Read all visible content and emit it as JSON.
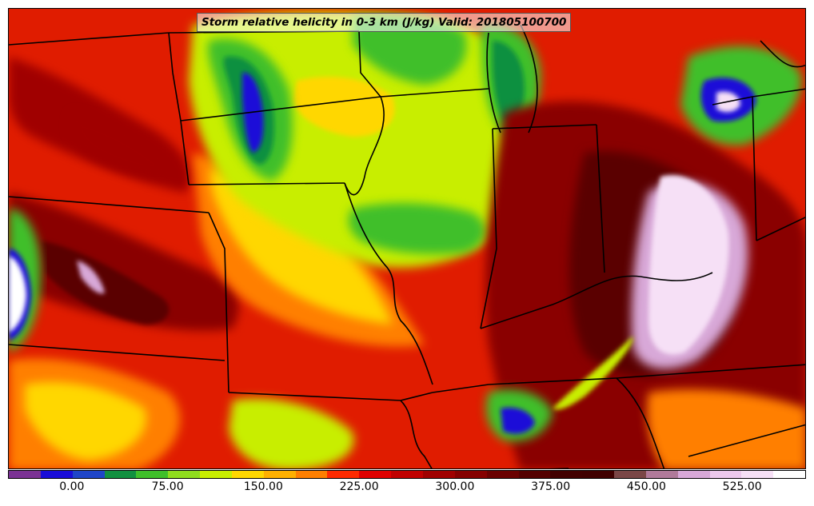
{
  "title": "Storm relative helicity in 0-3 km (J/kg) Valid: 201805100700",
  "colorbar": {
    "colors": [
      "#7b3294",
      "#1a0dd8",
      "#1f45c8",
      "#119040",
      "#3fbf2a",
      "#8fdc1e",
      "#c8ee00",
      "#ffd700",
      "#ffb000",
      "#ff7f00",
      "#ff2a00",
      "#e00000",
      "#c00000",
      "#a00000",
      "#850000",
      "#6a0000",
      "#540000",
      "#420000",
      "#400000",
      "#7a4646",
      "#b07a9a",
      "#d8a8d8",
      "#ecc8ec",
      "#f6e0f6",
      "#ffffff"
    ],
    "tick_labels": [
      "0.00",
      "75.00",
      "150.00",
      "225.00",
      "300.00",
      "375.00",
      "450.00",
      "525.00"
    ],
    "range": [
      -50,
      575
    ]
  },
  "palette": {
    "bg_red": "#e01c00",
    "dark_red": "#8a0000",
    "maroon": "#5a0000",
    "orange": "#ff7f00",
    "yellow": "#ffd700",
    "lime": "#c8ee00",
    "green": "#3fbf2a",
    "dark_green": "#119040",
    "blue": "#1a0dd8",
    "pink": "#ecc8ec",
    "white": "#ffffff"
  },
  "icons": {
    "map_region": "us-midwest-state-boundaries",
    "legend": "color-scale-bar"
  }
}
